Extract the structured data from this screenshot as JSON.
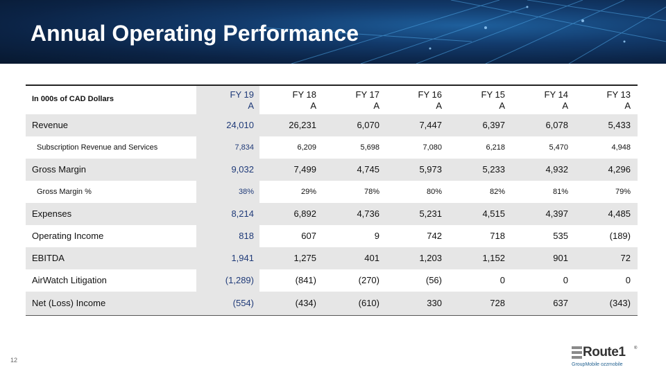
{
  "title": "Annual Operating Performance",
  "table": {
    "unit_label": "In 000s of CAD Dollars",
    "columns": [
      {
        "line1": "FY 19",
        "line2": "A"
      },
      {
        "line1": "FY 18",
        "line2": "A"
      },
      {
        "line1": "FY 17",
        "line2": "A"
      },
      {
        "line1": "FY 16",
        "line2": "A"
      },
      {
        "line1": "FY 15",
        "line2": "A"
      },
      {
        "line1": "FY 14",
        "line2": "A"
      },
      {
        "line1": "FY 13",
        "line2": "A"
      }
    ],
    "rows": [
      {
        "label": "Revenue",
        "values": [
          "24,010",
          "26,231",
          "6,070",
          "7,447",
          "6,397",
          "6,078",
          "5,433"
        ]
      },
      {
        "label": "Subscription Revenue and Services",
        "values": [
          "7,834",
          "6,209",
          "5,698",
          "7,080",
          "6,218",
          "5,470",
          "4,948"
        ]
      },
      {
        "label": "Gross Margin",
        "values": [
          "9,032",
          "7,499",
          "4,745",
          "5,973",
          "5,233",
          "4,932",
          "4,296"
        ]
      },
      {
        "label": "Gross Margin %",
        "values": [
          "38%",
          "29%",
          "78%",
          "80%",
          "82%",
          "81%",
          "79%"
        ]
      },
      {
        "label": "Expenses",
        "values": [
          "8,214",
          "6,892",
          "4,736",
          "5,231",
          "4,515",
          "4,397",
          "4,485"
        ]
      },
      {
        "label": "Operating Income",
        "values": [
          "818",
          "607",
          "9",
          "742",
          "718",
          "535",
          "(189)"
        ]
      },
      {
        "label": "EBITDA",
        "values": [
          "1,941",
          "1,275",
          "401",
          "1,203",
          "1,152",
          "901",
          "72"
        ]
      },
      {
        "label": "AirWatch Litigation",
        "values": [
          "(1,289)",
          "(841)",
          "(270)",
          "(56)",
          "0",
          "0",
          "0"
        ]
      },
      {
        "label": "Net (Loss) Income",
        "values": [
          "(554)",
          "(434)",
          "(610)",
          "330",
          "728",
          "637",
          "(343)"
        ]
      }
    ]
  },
  "page_number": "12",
  "logo": {
    "name": "Route1",
    "registered": "®",
    "subline": "GroupMobile  ozzmobile"
  },
  "colors": {
    "header_bg": "#0b2345",
    "highlight_text": "#1f3a78",
    "band_gray": "#e6e6e6"
  }
}
